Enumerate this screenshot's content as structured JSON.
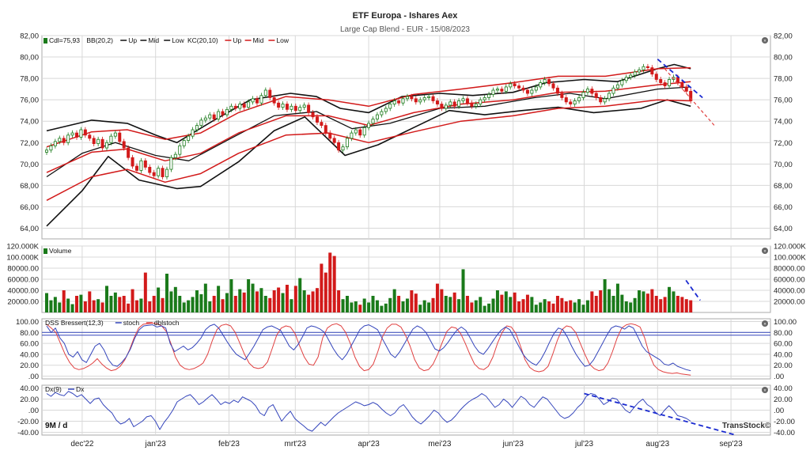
{
  "title": "ETF Europa - Ishares Aex",
  "subtitle": "Large Cap Blend - EUR - 15/08/2023",
  "period_label": "9M / d",
  "watermark": "TransStock©",
  "x_axis_labels": [
    "dec'22",
    "jan'23",
    "feb'23",
    "mrt'23",
    "apr'23",
    "mei'23",
    "jun'23",
    "jul'23",
    "aug'23",
    "sep'23"
  ],
  "panels": {
    "price": {
      "legend_items": [
        "Cdl=75,93",
        "BB(20,2)",
        "Up",
        "Mid",
        "Low",
        "KC(20,10)",
        "Up",
        "Mid",
        "Low"
      ],
      "y_ticks": [
        "82,00",
        "80,00",
        "78,00",
        "76,00",
        "74,00",
        "72,00",
        "70,00",
        "68,00",
        "66,00",
        "64,00"
      ]
    },
    "volume": {
      "legend": "Volume",
      "y_ticks": [
        "120.000K",
        "100.000K",
        "80000.00",
        "60000.00",
        "40000.00",
        "20000.00"
      ]
    },
    "dss": {
      "legend": [
        "DSS Bressert(12,3)",
        "stoch",
        "dblstoch"
      ],
      "y_ticks": [
        "100.00",
        "80.00",
        "60.00",
        "40.00",
        "20.00",
        ".00"
      ]
    },
    "dx": {
      "legend": [
        "Dx(9)",
        "Dx"
      ],
      "y_ticks": [
        "40.00",
        "20.00",
        ".00",
        "-20.00",
        "-40.00"
      ]
    }
  },
  "colors": {
    "up_candle": "#1a7a1a",
    "down_candle": "#d21a1a",
    "bollinger": "#111111",
    "keltner": "#d21a1a",
    "stoch": "#3344bb",
    "dblstoch": "#e04040",
    "dx": "#3344bb",
    "trendline": "#1a2ad0",
    "grid": "#d8d8d8"
  },
  "chart_data": {
    "type": "candlestick",
    "x_range": [
      "2022-11-15",
      "2023-09-15"
    ],
    "x_ticks": [
      "2022-12-01",
      "2023-01-01",
      "2023-02-01",
      "2023-03-01",
      "2023-04-01",
      "2023-05-01",
      "2023-06-01",
      "2023-07-01",
      "2023-08-01",
      "2023-09-01"
    ],
    "ylim_price": [
      63,
      82
    ],
    "ylim_volume": [
      0,
      120000
    ],
    "ylim_dss": [
      -5,
      105
    ],
    "ylim_dx": [
      -45,
      45
    ],
    "close_series": [
      71.3,
      71.7,
      72.1,
      72.4,
      72.0,
      72.7,
      72.9,
      72.5,
      73.2,
      72.7,
      72.4,
      71.9,
      72.3,
      71.5,
      72.0,
      72.6,
      72.9,
      72.1,
      71.5,
      70.6,
      69.8,
      69.4,
      70.3,
      69.7,
      69.2,
      68.9,
      69.6,
      68.8,
      69.5,
      70.6,
      70.9,
      71.7,
      72.2,
      72.6,
      73.2,
      73.6,
      74.1,
      74.3,
      74.6,
      74.2,
      74.9,
      74.6,
      75.1,
      75.4,
      75.2,
      75.6,
      75.3,
      75.8,
      76.1,
      75.7,
      76.4,
      76.9,
      76.2,
      75.7,
      75.3,
      75.6,
      75.1,
      75.4,
      75.0,
      75.3,
      75.5,
      74.8,
      74.4,
      73.9,
      73.6,
      72.9,
      72.4,
      72.0,
      71.3,
      71.6,
      72.4,
      72.9,
      73.2,
      72.7,
      73.4,
      73.8,
      74.2,
      74.6,
      74.9,
      75.2,
      75.6,
      75.9,
      75.7,
      76.1,
      76.3,
      76.1,
      75.8,
      76.0,
      76.2,
      76.3,
      75.9,
      75.6,
      75.2,
      75.5,
      75.8,
      75.4,
      75.9,
      76.1,
      75.7,
      75.4,
      75.6,
      76.0,
      76.2,
      76.5,
      76.9,
      77.0,
      76.8,
      77.2,
      77.5,
      77.3,
      77.1,
      76.9,
      76.6,
      76.9,
      77.2,
      77.6,
      77.9,
      77.5,
      77.1,
      76.6,
      76.2,
      75.8,
      75.6,
      75.9,
      76.2,
      76.7,
      77.0,
      76.6,
      76.2,
      75.8,
      76.1,
      76.6,
      77.1,
      77.4,
      77.8,
      78.1,
      78.3,
      78.6,
      78.8,
      79.1,
      79.0,
      78.4,
      77.9,
      77.6,
      77.3,
      77.9,
      78.1,
      77.6,
      77.2,
      76.8,
      75.9
    ],
    "bb_up": [
      {
        "x": "2022-11-16",
        "y": 73.1
      },
      {
        "x": "2022-12-05",
        "y": 74.1
      },
      {
        "x": "2022-12-20",
        "y": 73.8
      },
      {
        "x": "2023-01-01",
        "y": 72.7
      },
      {
        "x": "2023-01-10",
        "y": 72.0
      },
      {
        "x": "2023-01-25",
        "y": 74.0
      },
      {
        "x": "2023-02-10",
        "y": 76.0
      },
      {
        "x": "2023-02-27",
        "y": 76.6
      },
      {
        "x": "2023-03-10",
        "y": 76.3
      },
      {
        "x": "2023-03-20",
        "y": 75.2
      },
      {
        "x": "2023-04-01",
        "y": 74.8
      },
      {
        "x": "2023-04-15",
        "y": 76.3
      },
      {
        "x": "2023-05-01",
        "y": 76.6
      },
      {
        "x": "2023-05-15",
        "y": 76.4
      },
      {
        "x": "2023-06-01",
        "y": 76.7
      },
      {
        "x": "2023-06-15",
        "y": 77.6
      },
      {
        "x": "2023-07-01",
        "y": 77.9
      },
      {
        "x": "2023-07-15",
        "y": 77.7
      },
      {
        "x": "2023-08-01",
        "y": 78.9
      },
      {
        "x": "2023-08-08",
        "y": 79.3
      },
      {
        "x": "2023-08-15",
        "y": 78.9
      }
    ],
    "bb_low": [
      {
        "x": "2022-11-16",
        "y": 64.2
      },
      {
        "x": "2022-12-01",
        "y": 67.5
      },
      {
        "x": "2022-12-12",
        "y": 70.7
      },
      {
        "x": "2022-12-25",
        "y": 68.5
      },
      {
        "x": "2023-01-10",
        "y": 67.7
      },
      {
        "x": "2023-01-20",
        "y": 67.9
      },
      {
        "x": "2023-02-05",
        "y": 70.2
      },
      {
        "x": "2023-02-20",
        "y": 73.1
      },
      {
        "x": "2023-03-05",
        "y": 74.4
      },
      {
        "x": "2023-03-22",
        "y": 70.8
      },
      {
        "x": "2023-04-05",
        "y": 71.8
      },
      {
        "x": "2023-04-20",
        "y": 73.4
      },
      {
        "x": "2023-05-05",
        "y": 75.0
      },
      {
        "x": "2023-05-20",
        "y": 74.6
      },
      {
        "x": "2023-06-05",
        "y": 75.0
      },
      {
        "x": "2023-06-20",
        "y": 75.3
      },
      {
        "x": "2023-07-05",
        "y": 74.8
      },
      {
        "x": "2023-07-25",
        "y": 75.2
      },
      {
        "x": "2023-08-05",
        "y": 76.0
      },
      {
        "x": "2023-08-15",
        "y": 75.4
      }
    ],
    "bb_mid": [
      {
        "x": "2022-11-16",
        "y": 68.8
      },
      {
        "x": "2022-12-01",
        "y": 71.0
      },
      {
        "x": "2022-12-15",
        "y": 72.0
      },
      {
        "x": "2023-01-01",
        "y": 70.8
      },
      {
        "x": "2023-01-15",
        "y": 70.3
      },
      {
        "x": "2023-02-01",
        "y": 72.3
      },
      {
        "x": "2023-02-20",
        "y": 74.5
      },
      {
        "x": "2023-03-10",
        "y": 74.9
      },
      {
        "x": "2023-03-25",
        "y": 73.3
      },
      {
        "x": "2023-04-10",
        "y": 73.8
      },
      {
        "x": "2023-05-01",
        "y": 75.2
      },
      {
        "x": "2023-05-20",
        "y": 75.4
      },
      {
        "x": "2023-06-10",
        "y": 76.2
      },
      {
        "x": "2023-06-25",
        "y": 76.6
      },
      {
        "x": "2023-07-10",
        "y": 76.1
      },
      {
        "x": "2023-08-01",
        "y": 77.0
      },
      {
        "x": "2023-08-15",
        "y": 77.2
      }
    ],
    "kc_up": [
      {
        "x": "2022-11-16",
        "y": 71.6
      },
      {
        "x": "2022-12-05",
        "y": 73.0
      },
      {
        "x": "2022-12-20",
        "y": 73.2
      },
      {
        "x": "2023-01-05",
        "y": 72.3
      },
      {
        "x": "2023-01-20",
        "y": 72.9
      },
      {
        "x": "2023-02-05",
        "y": 74.8
      },
      {
        "x": "2023-02-25",
        "y": 76.3
      },
      {
        "x": "2023-03-15",
        "y": 76.0
      },
      {
        "x": "2023-04-01",
        "y": 75.4
      },
      {
        "x": "2023-04-20",
        "y": 76.5
      },
      {
        "x": "2023-05-10",
        "y": 77.0
      },
      {
        "x": "2023-06-01",
        "y": 77.6
      },
      {
        "x": "2023-06-20",
        "y": 78.2
      },
      {
        "x": "2023-07-10",
        "y": 78.2
      },
      {
        "x": "2023-08-01",
        "y": 78.9
      },
      {
        "x": "2023-08-15",
        "y": 79.0
      }
    ],
    "kc_mid": [
      {
        "x": "2022-11-16",
        "y": 69.2
      },
      {
        "x": "2022-12-05",
        "y": 71.1
      },
      {
        "x": "2022-12-20",
        "y": 71.4
      },
      {
        "x": "2023-01-05",
        "y": 70.3
      },
      {
        "x": "2023-01-20",
        "y": 71.0
      },
      {
        "x": "2023-02-05",
        "y": 72.9
      },
      {
        "x": "2023-02-25",
        "y": 74.5
      },
      {
        "x": "2023-03-15",
        "y": 74.5
      },
      {
        "x": "2023-04-01",
        "y": 73.6
      },
      {
        "x": "2023-04-20",
        "y": 74.8
      },
      {
        "x": "2023-05-10",
        "y": 75.6
      },
      {
        "x": "2023-06-01",
        "y": 76.0
      },
      {
        "x": "2023-06-20",
        "y": 76.7
      },
      {
        "x": "2023-07-10",
        "y": 76.8
      },
      {
        "x": "2023-08-01",
        "y": 77.4
      },
      {
        "x": "2023-08-15",
        "y": 77.7
      }
    ],
    "kc_low": [
      {
        "x": "2022-11-16",
        "y": 66.6
      },
      {
        "x": "2022-12-05",
        "y": 68.8
      },
      {
        "x": "2022-12-20",
        "y": 69.5
      },
      {
        "x": "2023-01-05",
        "y": 68.3
      },
      {
        "x": "2023-01-20",
        "y": 69.1
      },
      {
        "x": "2023-02-05",
        "y": 71.0
      },
      {
        "x": "2023-02-25",
        "y": 72.7
      },
      {
        "x": "2023-03-15",
        "y": 72.9
      },
      {
        "x": "2023-04-01",
        "y": 72.0
      },
      {
        "x": "2023-04-20",
        "y": 73.0
      },
      {
        "x": "2023-05-10",
        "y": 74.0
      },
      {
        "x": "2023-06-01",
        "y": 74.5
      },
      {
        "x": "2023-06-20",
        "y": 75.2
      },
      {
        "x": "2023-07-10",
        "y": 75.4
      },
      {
        "x": "2023-08-01",
        "y": 76.0
      },
      {
        "x": "2023-08-15",
        "y": 75.9
      }
    ],
    "volume_series": [
      35000,
      22000,
      28000,
      18000,
      40000,
      25000,
      15000,
      30000,
      32000,
      20000,
      38000,
      22000,
      24000,
      18000,
      48000,
      30000,
      36000,
      28000,
      30000,
      16000,
      42000,
      22000,
      25000,
      72000,
      20000,
      30000,
      45000,
      26000,
      70000,
      38000,
      46000,
      30000,
      18000,
      22000,
      28000,
      40000,
      33000,
      52000,
      20000,
      30000,
      48000,
      24000,
      35000,
      60000,
      30000,
      42000,
      36000,
      60000,
      52000,
      38000,
      44000,
      30000,
      26000,
      40000,
      45000,
      35000,
      50000,
      24000,
      48000,
      62000,
      40000,
      32000,
      38000,
      44000,
      88000,
      72000,
      108000,
      102000,
      40000,
      24000,
      30000,
      18000,
      20000,
      14000,
      25000,
      18000,
      30000,
      22000,
      12000,
      16000,
      26000,
      42000,
      30000,
      20000,
      25000,
      40000,
      34000,
      14000,
      22000,
      18000,
      26000,
      52000,
      42000,
      30000,
      28000,
      36000,
      24000,
      78000,
      30000,
      18000,
      22000,
      28000,
      12000,
      16000,
      25000,
      40000,
      32000,
      38000,
      28000,
      36000,
      20000,
      24000,
      32000,
      28000,
      14000,
      18000,
      24000,
      20000,
      16000,
      30000,
      26000,
      20000,
      22000,
      18000,
      24000,
      14000,
      22000,
      38000,
      30000,
      40000,
      60000,
      42000,
      30000,
      52000,
      32000,
      20000,
      18000,
      26000,
      40000,
      38000,
      34000,
      42000,
      30000,
      24000,
      28000,
      46000,
      38000,
      30000,
      28000,
      24000,
      22000
    ],
    "stoch_series": [
      92,
      80,
      88,
      70,
      60,
      40,
      35,
      45,
      30,
      25,
      40,
      55,
      60,
      48,
      30,
      20,
      18,
      25,
      35,
      50,
      70,
      85,
      92,
      93,
      94,
      90,
      92,
      88,
      60,
      45,
      50,
      55,
      48,
      52,
      60,
      70,
      85,
      92,
      95,
      88,
      75,
      62,
      50,
      40,
      35,
      30,
      42,
      55,
      70,
      85,
      90,
      92,
      88,
      84,
      70,
      55,
      48,
      58,
      72,
      88,
      92,
      90,
      86,
      80,
      65,
      50,
      38,
      30,
      40,
      55,
      70,
      85,
      92,
      94,
      90,
      85,
      70,
      55,
      40,
      34,
      44,
      58,
      72,
      86,
      92,
      88,
      80,
      65,
      50,
      46,
      52,
      62,
      74,
      84,
      90,
      84,
      70,
      55,
      44,
      40,
      50,
      62,
      74,
      84,
      90,
      85,
      70,
      55,
      40,
      30,
      24,
      20,
      30,
      45,
      62,
      78,
      88,
      85,
      72,
      55,
      40,
      28,
      18,
      20,
      30,
      45,
      60,
      75,
      88,
      92,
      90,
      86,
      92,
      88,
      72,
      55,
      45,
      40,
      35,
      30,
      22,
      20,
      24,
      18,
      15,
      12,
      10
    ],
    "dblstoch_series": [
      95,
      88,
      80,
      60,
      40,
      25,
      15,
      12,
      14,
      18,
      24,
      32,
      22,
      15,
      10,
      12,
      18,
      30,
      48,
      70,
      88,
      95,
      96,
      97,
      96,
      92,
      82,
      60,
      35,
      20,
      14,
      12,
      14,
      18,
      24,
      40,
      65,
      85,
      93,
      95,
      92,
      80,
      60,
      40,
      24,
      16,
      14,
      16,
      26,
      50,
      75,
      88,
      92,
      90,
      78,
      55,
      35,
      22,
      20,
      35,
      70,
      88,
      94,
      96,
      92,
      80,
      60,
      35,
      18,
      10,
      12,
      22,
      45,
      72,
      88,
      95,
      95,
      90,
      75,
      55,
      30,
      15,
      10,
      12,
      22,
      40,
      62,
      82,
      90,
      88,
      78,
      60,
      40,
      22,
      14,
      12,
      18,
      35,
      60,
      80,
      92,
      90,
      78,
      55,
      30,
      16,
      10,
      8,
      10,
      18,
      40,
      65,
      85,
      92,
      90,
      80,
      60,
      40,
      22,
      14,
      10,
      12,
      24,
      45,
      70,
      88,
      94,
      96,
      94,
      90,
      70,
      40,
      20,
      12,
      8,
      6,
      5,
      6,
      4,
      3,
      2
    ],
    "dx_series": [
      30,
      25,
      32,
      28,
      26,
      34,
      30,
      24,
      28,
      20,
      12,
      20,
      22,
      10,
      2,
      -5,
      -18,
      -25,
      -22,
      -15,
      -30,
      -25,
      -20,
      -12,
      -10,
      -20,
      -35,
      -22,
      -12,
      0,
      15,
      20,
      25,
      28,
      20,
      10,
      15,
      22,
      28,
      20,
      10,
      15,
      12,
      18,
      14,
      24,
      20,
      16,
      8,
      -5,
      -10,
      5,
      10,
      -5,
      -20,
      -10,
      -2,
      -15,
      -22,
      -28,
      -35,
      -38,
      -30,
      -22,
      -28,
      -20,
      -12,
      -5,
      0,
      5,
      10,
      15,
      12,
      8,
      10,
      14,
      10,
      2,
      -5,
      -10,
      -5,
      5,
      10,
      0,
      -12,
      -20,
      -25,
      -18,
      -10,
      0,
      -5,
      -15,
      -22,
      -18,
      -10,
      0,
      8,
      15,
      20,
      24,
      30,
      25,
      15,
      5,
      10,
      20,
      14,
      5,
      15,
      25,
      20,
      10,
      5,
      15,
      24,
      20,
      10,
      0,
      -10,
      -15,
      -12,
      -5,
      5,
      12,
      25,
      30,
      28,
      20,
      10,
      15,
      22,
      20,
      10,
      0,
      -5,
      5,
      14,
      20,
      10,
      5,
      -5,
      -10,
      0,
      8,
      0,
      -10,
      -12,
      -15,
      -20
    ],
    "trendlines": {
      "price_down": [
        {
          "x": "2023-08-01",
          "y": 79.8
        },
        {
          "x": "2023-08-20",
          "y": 76.2
        }
      ],
      "price_projection": [
        {
          "x": "2023-08-04",
          "y": 78.9
        },
        {
          "x": "2023-08-25",
          "y": 73.6
        }
      ],
      "volume_down": [
        {
          "x": "2023-08-13",
          "y": 58000
        },
        {
          "x": "2023-08-19",
          "y": 22000
        }
      ],
      "dss_horizontal": [
        80,
        75
      ],
      "dx_down": [
        {
          "x": "2023-07-01",
          "y": 30
        },
        {
          "x": "2023-09-03",
          "y": -45
        }
      ]
    }
  }
}
